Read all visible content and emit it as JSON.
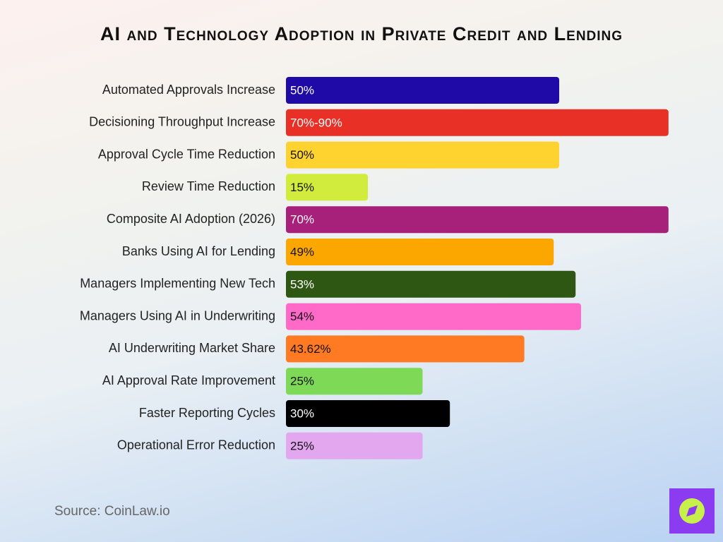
{
  "chart_data": {
    "type": "bar",
    "orientation": "horizontal",
    "title": "AI and Technology Adoption in Private Credit and Lending",
    "categories": [
      "Automated Approvals Increase",
      "Decisioning Throughput Increase",
      "Approval Cycle Time Reduction",
      "Review Time Reduction",
      "Composite AI Adoption (2026)",
      "Banks Using AI for Lending",
      "Managers Implementing New Tech",
      "Managers Using AI in Underwriting",
      "AI Underwriting Market Share",
      "AI Approval Rate Improvement",
      "Faster Reporting Cycles",
      "Operational Error Reduction"
    ],
    "values": [
      50,
      70,
      50,
      15,
      70,
      49,
      53,
      54,
      43.62,
      25,
      30,
      25
    ],
    "value_labels": [
      "50%",
      "70%-90%",
      "50%",
      "15%",
      "70%",
      "49%",
      "53%",
      "54%",
      "43.62%",
      "25%",
      "30%",
      "25%"
    ],
    "colors": [
      "#1f0aa8",
      "#e83027",
      "#fed330",
      "#d2ec3d",
      "#a7207a",
      "#fca600",
      "#2f5714",
      "#ff69c8",
      "#ff7a23",
      "#7ed957",
      "#000000",
      "#e2a7ef"
    ],
    "source": "Source: CoinLaw.io"
  }
}
